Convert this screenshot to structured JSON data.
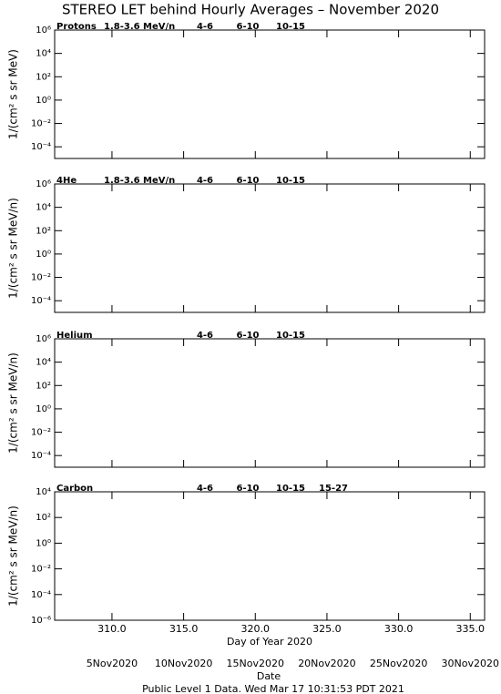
{
  "title": "STEREO LET behind Hourly Averages – November 2020",
  "footer": "Public Level 1 Data. Wed Mar 17 10:31:53 PDT 2021",
  "chart_data": [
    {
      "type": "line",
      "label": "Protons",
      "energy": "1.8-3.6 MeV/n",
      "ylabel": "1/(cm² s sr MeV)",
      "x": [],
      "xlim": [
        306,
        336
      ],
      "ylog": true,
      "ylim": [
        1e-05,
        1000000.0
      ],
      "yticks": [
        {
          "value": 0.0001,
          "label": "10⁻⁴"
        },
        {
          "value": 0.01,
          "label": "10⁻²"
        },
        {
          "value": 1,
          "label": "10⁰"
        },
        {
          "value": 100,
          "label": "10²"
        },
        {
          "value": 10000,
          "label": "10⁴"
        },
        {
          "value": 1000000,
          "label": "10⁶"
        }
      ],
      "series": [
        {
          "name": "4-6",
          "color": "#b00000",
          "values": []
        },
        {
          "name": "6-10",
          "color": "#ff0000",
          "values": []
        },
        {
          "name": "10-15",
          "color": "#999999",
          "values": []
        }
      ]
    },
    {
      "type": "line",
      "label": "4He",
      "energy": "1.8-3.6 MeV/n",
      "ylabel": "1/(cm² s sr MeV/n)",
      "x": [],
      "xlim": [
        306,
        336
      ],
      "ylog": true,
      "ylim": [
        1e-05,
        1000000.0
      ],
      "yticks": [
        {
          "value": 0.0001,
          "label": "10⁻⁴"
        },
        {
          "value": 0.01,
          "label": "10⁻²"
        },
        {
          "value": 1,
          "label": "10⁰"
        },
        {
          "value": 100,
          "label": "10²"
        },
        {
          "value": 10000,
          "label": "10⁴"
        },
        {
          "value": 1000000,
          "label": "10⁶"
        }
      ],
      "series": [
        {
          "name": "4-6",
          "color": "#b00000",
          "values": []
        },
        {
          "name": "6-10",
          "color": "#ff0000",
          "values": []
        },
        {
          "name": "10-15",
          "color": "#999999",
          "values": []
        }
      ]
    },
    {
      "type": "line",
      "label": "Helium",
      "ylabel": "1/(cm² s sr MeV/n)",
      "x": [],
      "xlim": [
        306,
        336
      ],
      "ylog": true,
      "ylim": [
        1e-05,
        1000000.0
      ],
      "yticks": [
        {
          "value": 0.0001,
          "label": "10⁻⁴"
        },
        {
          "value": 0.01,
          "label": "10⁻²"
        },
        {
          "value": 1,
          "label": "10⁰"
        },
        {
          "value": 100,
          "label": "10²"
        },
        {
          "value": 10000,
          "label": "10⁴"
        },
        {
          "value": 1000000,
          "label": "10⁶"
        }
      ],
      "series": [
        {
          "name": "4-6",
          "color": "#b00000",
          "values": []
        },
        {
          "name": "6-10",
          "color": "#ff0000",
          "values": []
        },
        {
          "name": "10-15",
          "color": "#999999",
          "values": []
        }
      ]
    },
    {
      "type": "line",
      "label": "Carbon",
      "ylabel": "1/(cm² s sr MeV/n)",
      "x": [],
      "xlim": [
        306,
        336
      ],
      "ylog": true,
      "ylim": [
        1e-06,
        10000.0
      ],
      "yticks": [
        {
          "value": 1e-06,
          "label": "10⁻⁶"
        },
        {
          "value": 0.0001,
          "label": "10⁻⁴"
        },
        {
          "value": 0.01,
          "label": "10⁻²"
        },
        {
          "value": 1,
          "label": "10⁰"
        },
        {
          "value": 100,
          "label": "10²"
        },
        {
          "value": 10000,
          "label": "10⁴"
        }
      ],
      "series": [
        {
          "name": "4-6",
          "color": "#b00000",
          "values": []
        },
        {
          "name": "6-10",
          "color": "#ff0000",
          "values": []
        },
        {
          "name": "10-15",
          "color": "#999999",
          "values": []
        },
        {
          "name": "15-27",
          "color": "#0000cc",
          "values": []
        }
      ],
      "xticks": [
        {
          "value": 310,
          "label": "310.0"
        },
        {
          "value": 315,
          "label": "315.0"
        },
        {
          "value": 320,
          "label": "320.0"
        },
        {
          "value": 325,
          "label": "325.0"
        },
        {
          "value": 330,
          "label": "330.0"
        },
        {
          "value": 335,
          "label": "335.0"
        }
      ],
      "xlabel": "Day of Year 2020",
      "date_ticks": [
        {
          "value": 310,
          "label": "5Nov2020"
        },
        {
          "value": 315,
          "label": "10Nov2020"
        },
        {
          "value": 320,
          "label": "15Nov2020"
        },
        {
          "value": 325,
          "label": "20Nov2020"
        },
        {
          "value": 330,
          "label": "25Nov2020"
        },
        {
          "value": 335,
          "label": "30Nov2020"
        }
      ],
      "date_label": "Date"
    }
  ]
}
